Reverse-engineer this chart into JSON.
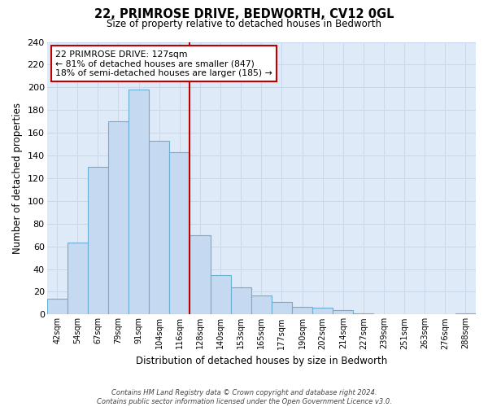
{
  "title": "22, PRIMROSE DRIVE, BEDWORTH, CV12 0GL",
  "subtitle": "Size of property relative to detached houses in Bedworth",
  "xlabel": "Distribution of detached houses by size in Bedworth",
  "ylabel": "Number of detached properties",
  "bar_labels": [
    "42sqm",
    "54sqm",
    "67sqm",
    "79sqm",
    "91sqm",
    "104sqm",
    "116sqm",
    "128sqm",
    "140sqm",
    "153sqm",
    "165sqm",
    "177sqm",
    "190sqm",
    "202sqm",
    "214sqm",
    "227sqm",
    "239sqm",
    "251sqm",
    "263sqm",
    "276sqm",
    "288sqm"
  ],
  "bar_values": [
    14,
    63,
    130,
    170,
    198,
    153,
    143,
    70,
    35,
    24,
    17,
    11,
    7,
    6,
    4,
    1,
    0,
    0,
    0,
    0,
    1
  ],
  "bar_color": "#c5d9f0",
  "bar_edge_color": "#6baed6",
  "vline_x": 7.0,
  "vline_color": "#c00000",
  "ylim": [
    0,
    240
  ],
  "yticks": [
    0,
    20,
    40,
    60,
    80,
    100,
    120,
    140,
    160,
    180,
    200,
    220,
    240
  ],
  "annotation_title": "22 PRIMROSE DRIVE: 127sqm",
  "annotation_line1": "← 81% of detached houses are smaller (847)",
  "annotation_line2": "18% of semi-detached houses are larger (185) →",
  "annotation_box_color": "#ffffff",
  "annotation_box_edge": "#c00000",
  "footnote1": "Contains HM Land Registry data © Crown copyright and database right 2024.",
  "footnote2": "Contains public sector information licensed under the Open Government Licence v3.0.",
  "grid_color": "#c8d8ea",
  "background_color": "#deeaf7"
}
